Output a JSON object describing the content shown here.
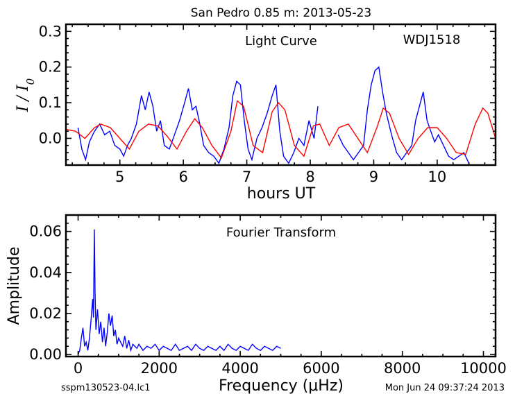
{
  "header": {
    "title": "San Pedro 0.85 m:  2013-05-23"
  },
  "footer": {
    "left": "sspm130523-04.lc1",
    "right": "Mon Jun 24 09:37:24 2013"
  },
  "chart_data": [
    {
      "type": "line",
      "title": "Light Curve",
      "annotation": "WDJ1518",
      "xlabel": "hours UT",
      "ylabel": "I / I0",
      "xlim": [
        4.15,
        10.92
      ],
      "ylim": [
        -0.075,
        0.32
      ],
      "xticks": [
        5,
        6,
        7,
        8,
        9,
        10
      ],
      "yticks": [
        0.0,
        0.1,
        0.2,
        0.3
      ],
      "xtick_labels": [
        "5",
        "6",
        "7",
        "8",
        "9",
        "10"
      ],
      "ytick_labels": [
        "0.0",
        "0.1",
        "0.2",
        "0.3"
      ],
      "grid": false,
      "series": [
        {
          "color": "#0000ff",
          "style": "noisy observed data (gaps near 8.2 h)",
          "segments": [
            {
              "x": [
                4.34,
                4.4,
                4.46,
                4.52,
                4.6,
                4.68,
                4.76,
                4.84,
                4.92,
                5.0,
                5.06,
                5.12,
                5.18,
                5.26,
                5.34,
                5.4,
                5.46,
                5.52,
                5.58,
                5.64,
                5.7,
                5.78,
                5.86,
                5.94,
                6.02,
                6.08,
                6.14,
                6.2,
                6.26,
                6.32,
                6.4,
                6.48,
                6.56,
                6.64,
                6.72,
                6.78,
                6.84,
                6.9,
                6.96,
                7.02,
                7.08,
                7.16,
                7.24,
                7.32,
                7.4,
                7.46,
                7.52,
                7.58,
                7.66,
                7.74,
                7.82,
                7.9,
                7.98,
                8.06,
                8.12
              ],
              "y": [
                0.03,
                -0.03,
                -0.06,
                -0.01,
                0.02,
                0.04,
                0.01,
                0.02,
                -0.02,
                -0.03,
                -0.05,
                -0.02,
                0.0,
                0.04,
                0.12,
                0.08,
                0.13,
                0.09,
                0.02,
                0.05,
                -0.02,
                -0.03,
                0.01,
                0.05,
                0.1,
                0.14,
                0.08,
                0.09,
                0.04,
                -0.02,
                -0.04,
                -0.05,
                -0.07,
                -0.03,
                0.03,
                0.12,
                0.16,
                0.15,
                0.05,
                -0.03,
                -0.06,
                0.0,
                0.03,
                0.07,
                0.12,
                0.15,
                0.02,
                -0.05,
                -0.07,
                -0.04,
                0.0,
                -0.02,
                0.05,
                0.0,
                0.09
              ]
            },
            {
              "x": [
                8.44,
                8.52,
                8.6,
                8.68,
                8.76,
                8.84,
                8.9,
                8.96,
                9.02,
                9.08,
                9.14,
                9.2,
                9.28,
                9.36,
                9.44,
                9.52,
                9.6,
                9.66,
                9.72,
                9.78,
                9.84,
                9.9,
                9.96,
                10.02,
                10.1,
                10.18,
                10.26,
                10.34,
                10.42,
                10.5
              ],
              "y": [
                0.01,
                -0.02,
                -0.04,
                -0.06,
                -0.04,
                -0.02,
                0.08,
                0.15,
                0.19,
                0.2,
                0.13,
                0.07,
                0.01,
                -0.04,
                -0.06,
                -0.04,
                -0.02,
                0.05,
                0.09,
                0.13,
                0.05,
                0.02,
                -0.01,
                0.01,
                -0.02,
                -0.05,
                -0.06,
                -0.05,
                -0.04,
                -0.07
              ]
            }
          ]
        },
        {
          "color": "#ff0000",
          "style": "smooth model fit",
          "x": [
            4.15,
            4.3,
            4.45,
            4.6,
            4.7,
            4.85,
            5.0,
            5.15,
            5.3,
            5.45,
            5.6,
            5.75,
            5.9,
            6.05,
            6.18,
            6.3,
            6.45,
            6.6,
            6.75,
            6.85,
            6.95,
            7.1,
            7.25,
            7.4,
            7.5,
            7.6,
            7.75,
            7.9,
            8.05,
            8.15,
            8.3,
            8.45,
            8.6,
            8.75,
            8.9,
            9.05,
            9.15,
            9.25,
            9.4,
            9.55,
            9.7,
            9.85,
            10.0,
            10.15,
            10.3,
            10.45,
            10.6,
            10.72,
            10.8,
            10.92
          ],
          "y": [
            0.025,
            0.02,
            0.0,
            0.03,
            0.04,
            0.03,
            0.0,
            -0.03,
            0.02,
            0.04,
            0.035,
            0.005,
            -0.03,
            0.02,
            0.055,
            0.03,
            -0.02,
            -0.055,
            0.02,
            0.105,
            0.09,
            -0.02,
            -0.04,
            0.075,
            0.1,
            0.08,
            -0.02,
            -0.05,
            0.035,
            0.04,
            -0.02,
            0.03,
            0.04,
            0.0,
            -0.04,
            0.03,
            0.085,
            0.07,
            0.0,
            -0.045,
            0.0,
            0.03,
            0.03,
            0.0,
            -0.04,
            -0.045,
            0.04,
            0.085,
            0.07,
            0.0
          ]
        }
      ]
    },
    {
      "type": "line",
      "title": "Fourier Transform",
      "xlabel": "Frequency (μHz)",
      "ylabel": "Amplitude",
      "xlim": [
        -300,
        10300
      ],
      "ylim": [
        -0.001,
        0.068
      ],
      "xticks": [
        0,
        2000,
        4000,
        6000,
        8000,
        10000
      ],
      "yticks": [
        0.0,
        0.02,
        0.04,
        0.06
      ],
      "xtick_labels": [
        "0",
        "2000",
        "4000",
        "6000",
        "8000",
        "10000"
      ],
      "ytick_labels": [
        "0.00",
        "0.02",
        "0.04",
        "0.06"
      ],
      "grid": false,
      "series": [
        {
          "color": "#0000ff",
          "x": [
            0,
            40,
            80,
            120,
            160,
            200,
            240,
            280,
            320,
            360,
            380,
            400,
            420,
            440,
            480,
            520,
            560,
            600,
            640,
            680,
            720,
            760,
            800,
            840,
            880,
            920,
            960,
            1000,
            1050,
            1100,
            1150,
            1200,
            1250,
            1300,
            1350,
            1400,
            1450,
            1500,
            1600,
            1700,
            1800,
            1900,
            2000,
            2100,
            2200,
            2300,
            2400,
            2500,
            2600,
            2700,
            2800,
            2900,
            3000,
            3100,
            3200,
            3300,
            3400,
            3500,
            3600,
            3700,
            3800,
            3900,
            4000,
            4100,
            4200,
            4300,
            4400,
            4500,
            4600,
            4700,
            4800,
            4900,
            5000
          ],
          "y": [
            0.0,
            0.002,
            0.008,
            0.013,
            0.004,
            0.006,
            0.002,
            0.008,
            0.017,
            0.027,
            0.018,
            0.061,
            0.03,
            0.012,
            0.022,
            0.01,
            0.016,
            0.006,
            0.013,
            0.004,
            0.011,
            0.02,
            0.014,
            0.019,
            0.009,
            0.012,
            0.005,
            0.008,
            0.006,
            0.004,
            0.009,
            0.003,
            0.007,
            0.002,
            0.005,
            0.004,
            0.003,
            0.005,
            0.002,
            0.004,
            0.003,
            0.005,
            0.002,
            0.004,
            0.003,
            0.002,
            0.005,
            0.002,
            0.003,
            0.004,
            0.002,
            0.005,
            0.003,
            0.002,
            0.004,
            0.003,
            0.002,
            0.004,
            0.002,
            0.005,
            0.003,
            0.002,
            0.004,
            0.003,
            0.002,
            0.005,
            0.003,
            0.002,
            0.004,
            0.003,
            0.002,
            0.004,
            0.003
          ]
        }
      ]
    }
  ]
}
